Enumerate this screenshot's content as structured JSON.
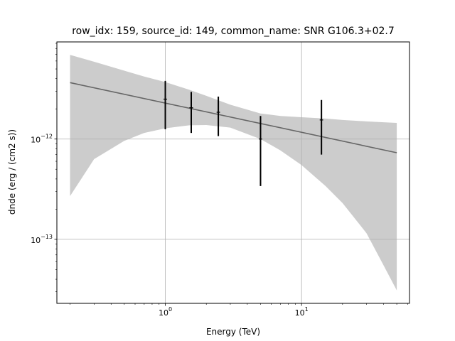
{
  "chart_data": {
    "type": "line",
    "title": "row_idx: 159, source_id: 149, common_name: SNR G106.3+02.7",
    "xlabel": "Energy (TeV)",
    "ylabel": "dnde (erg / (cm2 s))",
    "x_scale": "log",
    "y_scale": "log",
    "xlim": [
      0.16,
      62
    ],
    "ylim": [
      2.3e-14,
      9.3e-12
    ],
    "grid": true,
    "x_ticks": [
      {
        "value": 1,
        "base": "10",
        "exp": "0"
      },
      {
        "value": 10,
        "base": "10",
        "exp": "1"
      }
    ],
    "y_ticks": [
      {
        "value": 1e-13,
        "base": "10",
        "exp": "−13"
      },
      {
        "value": 1e-12,
        "base": "10",
        "exp": "−12"
      }
    ],
    "colors": {
      "band": "#cccccc",
      "model": "#666666",
      "points": "#000000",
      "grid": "#b0b0b0"
    },
    "model_line": {
      "x": [
        0.2,
        50
      ],
      "y": [
        3.65e-12,
        7.3e-13
      ]
    },
    "confidence_band": {
      "x": [
        0.2,
        0.3,
        0.5,
        0.7,
        1.0,
        1.5,
        2.0,
        3.0,
        5.0,
        7.0,
        10.0,
        15.0,
        20.0,
        30.0,
        40.0,
        50.0
      ],
      "upper": [
        6.9e-12,
        5.9e-12,
        4.8e-12,
        4.2e-12,
        3.7e-12,
        3.1e-12,
        2.7e-12,
        2.2e-12,
        1.8e-12,
        1.7e-12,
        1.65e-12,
        1.6e-12,
        1.55e-12,
        1.5e-12,
        1.47e-12,
        1.45e-12
      ],
      "lower": [
        2.7e-13,
        6.3e-13,
        9.6e-13,
        1.15e-12,
        1.28e-12,
        1.37e-12,
        1.38e-12,
        1.3e-12,
        1e-12,
        7.7e-13,
        5.5e-13,
        3.4e-13,
        2.3e-13,
        1.15e-13,
        5.5e-14,
        3.1e-14
      ]
    },
    "points": [
      {
        "x": 1.0,
        "y": 2.5e-12,
        "yerr_low": 1.25e-12,
        "yerr_high": 3.8e-12,
        "xerr": [
          0.97,
          1.03
        ]
      },
      {
        "x": 1.55,
        "y": 2.05e-12,
        "yerr_low": 1.15e-12,
        "yerr_high": 2.95e-12,
        "xerr": [
          1.5,
          1.6
        ]
      },
      {
        "x": 2.45,
        "y": 1.85e-12,
        "yerr_low": 1.07e-12,
        "yerr_high": 2.65e-12,
        "xerr": [
          2.38,
          2.52
        ]
      },
      {
        "x": 5.0,
        "y": 1e-12,
        "yerr_low": 3.4e-13,
        "yerr_high": 1.7e-12,
        "xerr": [
          4.86,
          5.14
        ]
      },
      {
        "x": 14.0,
        "y": 1.55e-12,
        "yerr_low": 7e-13,
        "yerr_high": 2.45e-12,
        "xerr": [
          13.6,
          14.4
        ]
      }
    ]
  }
}
